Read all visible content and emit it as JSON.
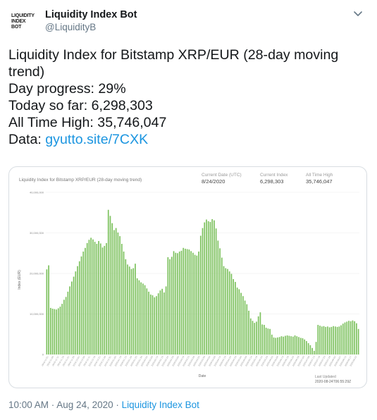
{
  "header": {
    "avatar_lines": [
      "LIQUIDITY",
      "INDEX",
      "BOT"
    ],
    "display_name": "Liquidity Index Bot",
    "handle": "@LiquidityB",
    "chevron_icon": "chevron-down-icon"
  },
  "tweet": {
    "line1": "Liquidity Index for Bitstamp XRP/EUR (28-day moving",
    "line2": "trend)",
    "line3": "Day progress: 29%",
    "line4": "Today so far: 6,298,303",
    "line5": "All Time High: 35,746,047",
    "data_label": "Data: ",
    "link": "gyutto.site/7CXK"
  },
  "card": {
    "stats": [
      {
        "label": "Current Date (UTC)",
        "value": "8/24/2020"
      },
      {
        "label": "Current Index",
        "value": "6,298,303"
      },
      {
        "label": "All Time High",
        "value": "35,746,047"
      }
    ],
    "last_updated_label": "Last Updated",
    "last_updated_value": "2020-08-24T06:55:29Z"
  },
  "chart_data": {
    "type": "bar",
    "title": "Liquidity Index for Bitstamp XRP/EUR (28-day moving trend)",
    "xlabel": "Date",
    "ylabel": "Index (EUR)",
    "ylim": [
      0,
      40000000
    ],
    "yticks": [
      0,
      10000000,
      20000000,
      30000000,
      40000000
    ],
    "ytick_labels": [
      "0",
      "10,000,000",
      "20,000,000",
      "30,000,000",
      "40,000,000"
    ],
    "bar_color": "#7cc15d",
    "grid": true,
    "values": [
      21000000,
      22000000,
      11500000,
      11300000,
      11200000,
      11100000,
      11400000,
      11800000,
      12500000,
      13500000,
      14200000,
      15500000,
      16800000,
      18000000,
      19200000,
      20500000,
      21800000,
      23000000,
      24200000,
      25400000,
      26300000,
      27500000,
      28300000,
      28800000,
      28400000,
      27800000,
      27300000,
      28000000,
      27400000,
      26400000,
      26800000,
      27500000,
      35700000,
      34200000,
      32400000,
      30700000,
      31200000,
      30100000,
      29200000,
      27300000,
      25400000,
      23500000,
      22200000,
      21700000,
      21100000,
      21300000,
      22400000,
      18800000,
      18300000,
      17800000,
      17500000,
      17100000,
      16300000,
      15500000,
      14800000,
      14600000,
      14100000,
      14400000,
      15100000,
      15800000,
      16200000,
      15300000,
      16800000,
      24000000,
      23500000,
      24100000,
      25500000,
      25100000,
      25000000,
      25400000,
      25600000,
      26300000,
      26100000,
      26000000,
      25900000,
      25500000,
      25100000,
      24600000,
      24400000,
      25400000,
      29300000,
      31200000,
      32600000,
      33300000,
      32900000,
      32700000,
      33400000,
      33100000,
      31100000,
      28100000,
      26200000,
      23900000,
      21800000,
      21300000,
      21100000,
      20500000,
      19900000,
      18600000,
      17900000,
      16500000,
      16100000,
      15200000,
      14400000,
      13300000,
      12400000,
      10800000,
      8900000,
      8300000,
      7800000,
      8100000,
      9400000,
      10400000,
      7400000,
      7300000,
      6600000,
      6400000,
      6300000,
      4900000,
      4200000,
      4100000,
      4200000,
      4300000,
      4500000,
      4400000,
      4600000,
      4700000,
      4600000,
      4500000,
      4400000,
      4700000,
      4500000,
      4300000,
      4100000,
      4000000,
      3700000,
      3300000,
      2800000,
      2300000,
      1600000,
      900000,
      3100000,
      7300000,
      7100000,
      6900000,
      7000000,
      6800000,
      6900000,
      6700000,
      6800000,
      7000000,
      6900000,
      6800000,
      6900000,
      7200000,
      7600000,
      7900000,
      8100000,
      8300000,
      8200000,
      8400000,
      8200000,
      7700000,
      6300000
    ],
    "x_tick_labels": [
      "2019-11-01",
      "2019-11-06",
      "2019-11-11",
      "2019-11-16",
      "2019-11-21",
      "2019-11-26",
      "2019-12-01",
      "2019-12-06",
      "2019-12-11",
      "2019-12-16",
      "2019-12-21",
      "2019-12-26",
      "2019-12-31",
      "2020-01-05",
      "2020-01-10",
      "2020-01-15",
      "2020-01-20",
      "2020-01-25",
      "2020-01-30",
      "2020-02-04",
      "2020-02-09",
      "2020-02-14",
      "2020-02-19",
      "2020-02-24",
      "2020-02-29",
      "2020-03-05",
      "2020-03-10",
      "2020-03-15",
      "2020-03-20",
      "2020-03-25",
      "2020-03-30",
      "2020-04-04",
      "2020-04-09",
      "2020-04-14",
      "2020-04-19",
      "2020-04-24",
      "2020-04-29",
      "2020-05-04",
      "2020-05-09",
      "2020-05-14",
      "2020-05-19",
      "2020-05-24",
      "2020-05-29",
      "2020-06-03",
      "2020-06-08",
      "2020-06-13",
      "2020-06-18",
      "2020-06-23",
      "2020-06-28",
      "2020-07-03",
      "2020-07-08",
      "2020-07-13",
      "2020-07-18",
      "2020-07-23",
      "2020-07-28",
      "2020-08-02",
      "2020-08-07",
      "2020-08-12",
      "2020-08-17",
      "2020-08-22"
    ]
  },
  "footer": {
    "time": "10:00 AM · Aug 24, 2020 · ",
    "source": "Liquidity Index Bot"
  }
}
